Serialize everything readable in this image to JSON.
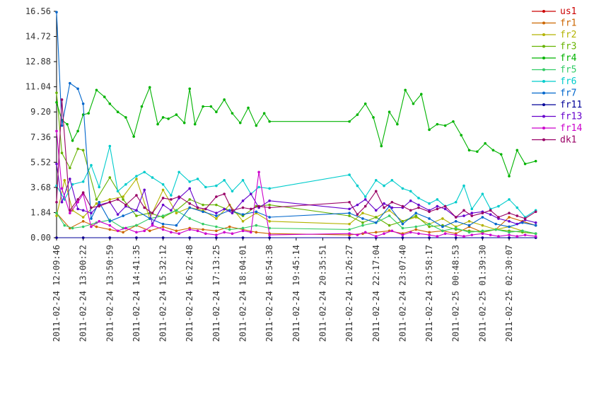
{
  "chart_data": {
    "type": "line",
    "title": "",
    "xlabel": "",
    "ylabel": "",
    "ylim": [
      0,
      16.56
    ],
    "y_ticks": [
      0.0,
      1.84,
      3.68,
      5.52,
      7.36,
      9.2,
      11.04,
      12.88,
      14.72,
      16.56
    ],
    "y_tick_labels": [
      "0.00",
      "1.84",
      "3.68",
      "5.52",
      "7.36",
      "9.20",
      "11.04",
      "12.88",
      "14.72",
      "16.56"
    ],
    "x_tick_labels": [
      "2011-02-24 12:09:46",
      "2011-02-24 13:00:22",
      "2011-02-24 13:50:59",
      "2011-02-24 14:41:35",
      "2011-02-24 15:32:12",
      "2011-02-24 16:22:48",
      "2011-02-24 17:13:25",
      "2011-02-24 18:04:01",
      "2011-02-24 18:54:38",
      "2011-02-24 19:45:14",
      "2011-02-24 20:35:51",
      "2011-02-24 21:26:27",
      "2011-02-24 22:17:04",
      "2011-02-24 23:07:40",
      "2011-02-24 23:58:17",
      "2011-02-25 00:48:53",
      "2011-02-25 01:39:30",
      "2011-02-25 02:30:07"
    ],
    "xlim_hours": [
      0,
      14.34
    ],
    "grid": false,
    "legend_placement": "right",
    "series": [
      {
        "name": "us1",
        "color": "#cc0000",
        "t": [
          0,
          1,
          2,
          3,
          4,
          5,
          6,
          7,
          8,
          11,
          12,
          13,
          14,
          15,
          16,
          17,
          18
        ],
        "values": [
          0,
          0,
          0,
          0,
          0,
          0,
          0,
          0,
          0,
          0,
          0,
          0,
          0,
          0,
          0,
          0,
          0
        ]
      },
      {
        "name": "fr1",
        "color": "#cc6600",
        "t": [
          0,
          0.5,
          1,
          1.5,
          2,
          2.5,
          3,
          3.5,
          4,
          4.5,
          5,
          5.5,
          6,
          6.5,
          7,
          7.5,
          8,
          11,
          11.5,
          12,
          12.5,
          13,
          13.5,
          14,
          14.5,
          15,
          15.5,
          16,
          16.5,
          17,
          17.5,
          18
        ],
        "values": [
          1.8,
          0.7,
          1.2,
          0.8,
          0.6,
          0.4,
          0.9,
          0.5,
          0.8,
          0.5,
          0.7,
          0.6,
          0.5,
          0.8,
          0.6,
          0.4,
          0.3,
          0.2,
          0.3,
          0.4,
          0.5,
          0.3,
          0.6,
          0.4,
          0.5,
          0.3,
          0.8,
          0.4,
          0.6,
          1.5,
          1.2,
          0.9
        ]
      },
      {
        "name": "fr2",
        "color": "#b3b300",
        "t": [
          0,
          0.3,
          0.6,
          1,
          1.5,
          2,
          2.5,
          3,
          3.5,
          4,
          4.5,
          5,
          5.5,
          6,
          6.5,
          7,
          7.5,
          8,
          11,
          11.5,
          12,
          12.5,
          13,
          13.5,
          14,
          14.5,
          15,
          15.5,
          16,
          16.5,
          17,
          17.5,
          18
        ],
        "values": [
          1.6,
          4.2,
          2.0,
          1.5,
          2.5,
          2.8,
          3.0,
          4.3,
          1.4,
          3.5,
          1.8,
          2.2,
          2.0,
          1.4,
          2.4,
          1.2,
          1.8,
          1.2,
          1.0,
          1.8,
          1.5,
          2.0,
          1.2,
          1.5,
          1.0,
          1.4,
          0.8,
          1.2,
          0.9,
          0.6,
          0.8,
          0.5,
          0.3
        ]
      },
      {
        "name": "fr3",
        "color": "#66b300",
        "t": [
          0,
          0.2,
          0.5,
          0.8,
          1,
          1.5,
          2,
          2.5,
          3,
          3.5,
          4,
          4.5,
          5,
          5.5,
          6,
          6.5,
          7,
          7.5,
          8,
          11,
          11.5,
          12,
          12.5,
          13,
          13.5,
          14,
          14.5,
          15,
          15.5,
          16,
          16.5,
          17,
          17.5,
          18
        ],
        "values": [
          10.6,
          6.2,
          5.1,
          6.5,
          6.4,
          2.8,
          4.4,
          2.8,
          1.6,
          1.8,
          1.5,
          2.0,
          2.8,
          2.4,
          2.4,
          2.0,
          1.6,
          2.3,
          2.4,
          1.6,
          1.1,
          1.5,
          0.9,
          1.2,
          1.6,
          0.8,
          0.9,
          0.6,
          0.5,
          0.4,
          0.6,
          0.5,
          0.4,
          0.3
        ]
      },
      {
        "name": "fr4",
        "color": "#00b300",
        "t": [
          0,
          0.2,
          0.4,
          0.6,
          0.8,
          1,
          1.2,
          1.5,
          1.8,
          2,
          2.3,
          2.6,
          2.9,
          3.2,
          3.5,
          3.8,
          4,
          4.2,
          4.5,
          4.8,
          5,
          5.2,
          5.5,
          5.8,
          6,
          6.3,
          6.6,
          6.9,
          7.2,
          7.5,
          7.8,
          8,
          11,
          11.3,
          11.6,
          11.9,
          12.2,
          12.5,
          12.8,
          13.1,
          13.4,
          13.7,
          14,
          14.3,
          14.6,
          14.9,
          15.2,
          15.5,
          15.8,
          16.1,
          16.4,
          16.7,
          17,
          17.3,
          17.6,
          18
        ],
        "values": [
          9.9,
          8.6,
          8.3,
          7.1,
          7.8,
          9.0,
          9.1,
          10.8,
          10.3,
          9.8,
          9.2,
          8.8,
          7.4,
          9.6,
          11.0,
          8.3,
          8.8,
          8.7,
          9.0,
          8.4,
          10.9,
          8.3,
          9.6,
          9.6,
          9.2,
          10.1,
          9.1,
          8.4,
          9.5,
          8.2,
          9.1,
          8.5,
          8.5,
          9.0,
          9.8,
          8.8,
          6.7,
          9.2,
          8.3,
          10.8,
          9.8,
          10.5,
          7.9,
          8.3,
          8.2,
          8.5,
          7.5,
          6.4,
          6.3,
          6.9,
          6.4,
          6.1,
          4.5,
          6.4,
          5.4,
          5.6
        ]
      },
      {
        "name": "fr5",
        "color": "#33cc66",
        "t": [
          0,
          0.3,
          0.6,
          1,
          1.5,
          2,
          2.5,
          3,
          3.5,
          4,
          4.5,
          5,
          5.5,
          6,
          6.5,
          7,
          7.5,
          8,
          11,
          11.5,
          12,
          12.5,
          13,
          13.5,
          14,
          14.5,
          15,
          15.5,
          16,
          16.5,
          17,
          17.5,
          18
        ],
        "values": [
          1.8,
          0.9,
          0.7,
          0.8,
          1.1,
          1.3,
          0.7,
          0.9,
          1.4,
          1.6,
          2.0,
          1.4,
          1.0,
          0.8,
          0.6,
          0.7,
          0.9,
          0.7,
          0.6,
          0.9,
          1.1,
          1.6,
          0.7,
          0.8,
          1.0,
          0.5,
          0.7,
          0.4,
          0.5,
          0.6,
          0.4,
          0.5,
          0.3
        ]
      },
      {
        "name": "fr6",
        "color": "#00cccc",
        "t": [
          0,
          0.3,
          0.6,
          1,
          1.3,
          1.6,
          2,
          2.3,
          2.6,
          3,
          3.3,
          3.6,
          4,
          4.3,
          4.6,
          5,
          5.3,
          5.6,
          6,
          6.3,
          6.6,
          7,
          7.3,
          7.6,
          8,
          11,
          11.3,
          11.6,
          12,
          12.3,
          12.6,
          13,
          13.3,
          13.6,
          14,
          14.3,
          14.6,
          15,
          15.3,
          15.6,
          16,
          16.3,
          16.6,
          17,
          17.3,
          17.6,
          18
        ],
        "values": [
          3.8,
          2.8,
          3.9,
          4.1,
          5.3,
          3.7,
          6.7,
          3.4,
          3.9,
          4.5,
          4.8,
          4.4,
          3.9,
          3.1,
          4.8,
          4.1,
          4.3,
          3.7,
          3.8,
          4.2,
          3.4,
          4.2,
          3.2,
          3.7,
          3.6,
          4.6,
          3.8,
          3.0,
          4.2,
          3.8,
          4.2,
          3.6,
          3.4,
          2.9,
          2.5,
          2.8,
          2.3,
          2.6,
          3.8,
          2.1,
          3.2,
          2.1,
          2.3,
          2.8,
          2.2,
          1.5,
          2.0
        ]
      },
      {
        "name": "fr7",
        "color": "#0066cc",
        "t": [
          0,
          0.2,
          0.5,
          0.8,
          1,
          1.3,
          1.6,
          2,
          2.5,
          3,
          3.5,
          4,
          4.5,
          5,
          5.5,
          6,
          6.5,
          7,
          7.5,
          8,
          11,
          11.5,
          12,
          12.5,
          13,
          13.5,
          14,
          14.5,
          15,
          15.5,
          16,
          16.5,
          17,
          17.5,
          18
        ],
        "values": [
          16.5,
          8.2,
          11.3,
          10.9,
          9.8,
          1.4,
          2.6,
          1.2,
          1.6,
          2.0,
          1.4,
          1.0,
          0.9,
          2.2,
          1.9,
          1.6,
          2.0,
          1.7,
          1.9,
          1.5,
          1.8,
          1.4,
          1.1,
          2.3,
          1.0,
          1.8,
          1.4,
          0.8,
          1.2,
          0.9,
          1.5,
          1.0,
          0.8,
          1.1,
          0.9
        ]
      },
      {
        "name": "fr11",
        "color": "#000099",
        "t": [
          0,
          1,
          2,
          3,
          4,
          5,
          6,
          7,
          8,
          11,
          12,
          13,
          14,
          15,
          16,
          17,
          18
        ],
        "values": [
          0,
          0,
          0,
          0,
          0,
          0,
          0,
          0,
          0,
          0,
          0,
          0,
          0,
          0,
          0,
          0,
          0
        ]
      },
      {
        "name": "fr13",
        "color": "#6600cc",
        "t": [
          0,
          0.2,
          0.5,
          0.8,
          1,
          1.3,
          1.6,
          2,
          2.3,
          2.6,
          3,
          3.3,
          3.6,
          4,
          4.3,
          4.6,
          5,
          5.3,
          5.6,
          6,
          6.3,
          6.6,
          7,
          7.3,
          7.6,
          8,
          11,
          11.3,
          11.6,
          12,
          12.3,
          12.6,
          13,
          13.3,
          13.6,
          14,
          14.3,
          14.6,
          15,
          15.3,
          15.6,
          16,
          16.3,
          16.6,
          17,
          17.3,
          17.6,
          18
        ],
        "values": [
          5.4,
          2.6,
          4.3,
          2.1,
          2.0,
          1.8,
          2.4,
          2.6,
          1.7,
          2.3,
          2.0,
          3.5,
          1.0,
          2.4,
          2.0,
          2.9,
          3.6,
          2.2,
          2.1,
          1.8,
          2.1,
          1.8,
          2.7,
          3.2,
          2.2,
          2.7,
          2.1,
          2.4,
          2.8,
          2.0,
          2.5,
          2.2,
          2.2,
          2.7,
          2.4,
          2.0,
          2.3,
          2.1,
          1.5,
          1.6,
          1.8,
          1.9,
          1.7,
          1.4,
          1.2,
          1.0,
          1.3,
          1.1
        ]
      },
      {
        "name": "fr14",
        "color": "#cc00cc",
        "t": [
          0,
          0.2,
          0.5,
          0.8,
          1,
          1.3,
          1.6,
          2,
          2.3,
          2.6,
          3,
          3.3,
          3.6,
          4,
          4.3,
          4.6,
          5,
          5.3,
          5.6,
          6,
          6.3,
          6.6,
          7,
          7.3,
          7.6,
          8,
          11,
          11.3,
          11.6,
          12,
          12.3,
          12.6,
          13,
          13.3,
          13.6,
          14,
          14.3,
          14.6,
          15,
          15.3,
          15.6,
          16,
          16.3,
          16.6,
          17,
          17.3,
          17.6,
          18
        ],
        "values": [
          7.8,
          3.6,
          1.8,
          2.6,
          3.2,
          0.8,
          1.2,
          0.9,
          0.5,
          0.7,
          0.4,
          0.5,
          0.9,
          0.6,
          0.4,
          0.3,
          0.6,
          0.5,
          0.3,
          0.2,
          0.4,
          0.3,
          0.5,
          0.4,
          4.8,
          0.2,
          0.3,
          0.2,
          0.4,
          0.1,
          0.3,
          0.5,
          0.2,
          0.4,
          0.3,
          0.2,
          0.1,
          0.3,
          0.2,
          0.1,
          0.2,
          0.3,
          0.2,
          0.1,
          0.2,
          0.1,
          0.2,
          0.1
        ]
      },
      {
        "name": "dk1",
        "color": "#990066",
        "t": [
          0,
          0.2,
          0.5,
          0.8,
          1,
          1.3,
          1.6,
          2,
          2.3,
          2.6,
          3,
          3.3,
          3.6,
          4,
          4.3,
          4.6,
          5,
          5.3,
          5.6,
          6,
          6.3,
          6.6,
          7,
          7.3,
          7.6,
          8,
          11,
          11.3,
          11.6,
          12,
          12.3,
          12.6,
          13,
          13.3,
          13.6,
          14,
          14.3,
          14.6,
          15,
          15.3,
          15.6,
          16,
          16.3,
          16.6,
          17,
          17.3,
          17.6,
          18
        ],
        "values": [
          2.6,
          10.1,
          2.0,
          2.8,
          3.3,
          2.2,
          2.3,
          2.6,
          2.8,
          2.4,
          3.1,
          2.2,
          1.8,
          2.9,
          2.8,
          3.0,
          2.5,
          2.2,
          2.1,
          3.0,
          3.2,
          2.0,
          2.2,
          2.1,
          2.3,
          2.2,
          2.6,
          1.7,
          2.3,
          3.4,
          2.2,
          2.6,
          2.3,
          2.0,
          2.2,
          1.9,
          2.1,
          2.3,
          1.5,
          2.0,
          1.6,
          1.8,
          2.0,
          1.5,
          1.8,
          1.6,
          1.4,
          1.9
        ]
      }
    ]
  }
}
